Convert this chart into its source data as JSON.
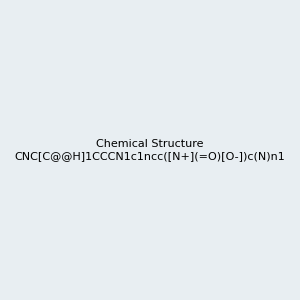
{
  "smiles": "CNC[C@@H]1CCCN1c1ncc([N+](=O)[O-])c(N)n1",
  "title": "",
  "bg_color": "#e8eef2",
  "figsize": [
    3.0,
    3.0
  ],
  "dpi": 100
}
